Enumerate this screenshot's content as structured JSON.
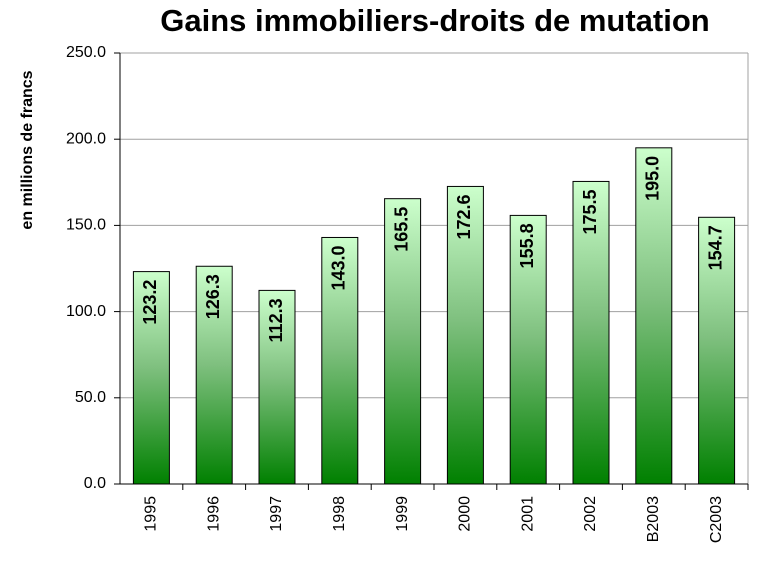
{
  "chart_data": {
    "type": "bar",
    "title": "Gains immobiliers-droits de mutation",
    "y_label": "en millions de francs",
    "categories": [
      "1995",
      "1996",
      "1997",
      "1998",
      "1999",
      "2000",
      "2001",
      "2002",
      "B2003",
      "C2003"
    ],
    "values": [
      123.2,
      126.3,
      112.3,
      143.0,
      165.5,
      172.6,
      155.8,
      175.5,
      195.0,
      154.7
    ],
    "value_labels": [
      "123.2",
      "126.3",
      "112.3",
      "143.0",
      "165.5",
      "172.6",
      "155.8",
      "175.5",
      "195.0",
      "154.7"
    ],
    "color": "#008000",
    "ylim": [
      0,
      250
    ],
    "yticks": [
      {
        "value": 0,
        "label": "0.0"
      },
      {
        "value": 50,
        "label": "50.0"
      },
      {
        "value": 100,
        "label": "100.0"
      },
      {
        "value": 150,
        "label": "150.0"
      },
      {
        "value": 200,
        "label": "200.0"
      },
      {
        "value": 250,
        "label": "250.0"
      }
    ],
    "grid": true
  }
}
